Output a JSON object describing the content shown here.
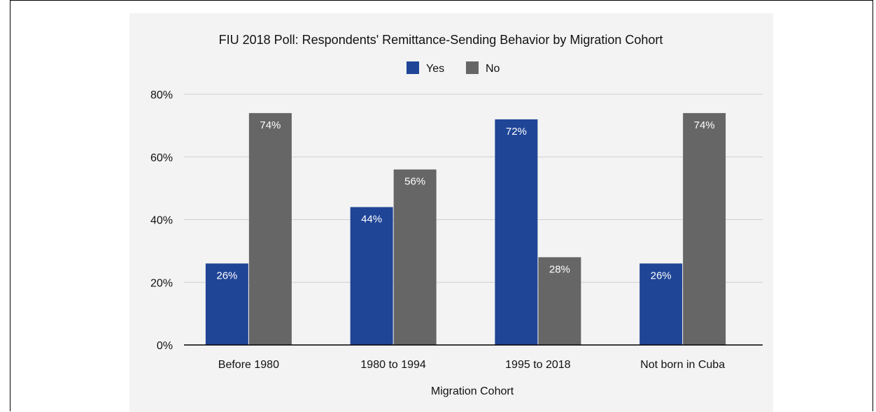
{
  "chart_data": {
    "type": "bar",
    "title": "FIU 2018 Poll: Respondents' Remittance-Sending Behavior by Migration Cohort",
    "xlabel": "Migration Cohort",
    "ylabel": "",
    "categories": [
      "Before 1980",
      "1980 to 1994",
      "1995 to 2018",
      "Not born in Cuba"
    ],
    "series": [
      {
        "name": "Yes",
        "values": [
          26,
          44,
          72,
          26
        ],
        "labels": [
          "26%",
          "44%",
          "72%",
          "26%"
        ],
        "color": "#1f4597"
      },
      {
        "name": "No",
        "values": [
          74,
          56,
          28,
          74
        ],
        "labels": [
          "74%",
          "56%",
          "28%",
          "74%"
        ],
        "color": "#666666"
      }
    ],
    "ylim": [
      0,
      80
    ],
    "yticks": [
      0,
      20,
      40,
      60,
      80
    ],
    "ytick_labels": [
      "0%",
      "20%",
      "40%",
      "60%",
      "80%"
    ],
    "grid": true,
    "legend_position": "top-center",
    "gridline_color": "#cfcfcf",
    "axis_color": "#000000"
  }
}
